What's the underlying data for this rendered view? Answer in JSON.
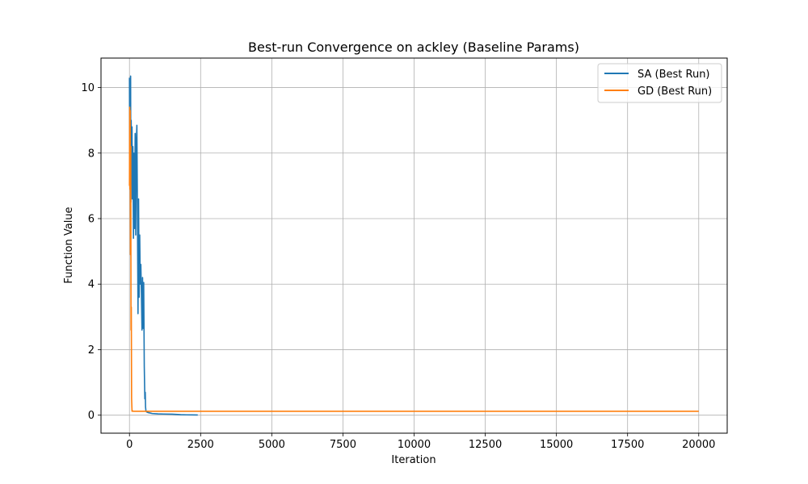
{
  "chart_data": {
    "type": "line",
    "title": "Best-run Convergence on ackley (Baseline Params)",
    "xlabel": "Iteration",
    "ylabel": "Function Value",
    "xlim": [
      -1000,
      21000
    ],
    "ylim": [
      -0.55,
      10.9
    ],
    "xticks": [
      0,
      2500,
      5000,
      7500,
      10000,
      12500,
      15000,
      17500,
      20000
    ],
    "yticks": [
      0,
      2,
      4,
      6,
      8,
      10
    ],
    "grid": true,
    "legend_position": "top-right",
    "series": [
      {
        "name": "SA (Best Run)",
        "color": "#1f77b4",
        "x": [
          0,
          10,
          25,
          40,
          50,
          60,
          75,
          90,
          100,
          120,
          140,
          160,
          180,
          200,
          220,
          240,
          260,
          280,
          300,
          320,
          340,
          360,
          380,
          400,
          420,
          440,
          460,
          480,
          500,
          520,
          540,
          555,
          565,
          580,
          600,
          650,
          700,
          800,
          1000,
          1200,
          1500,
          1700,
          1800,
          2000,
          2200,
          2400
        ],
        "y": [
          10.3,
          7.1,
          9.6,
          10.35,
          6.5,
          9.0,
          7.4,
          8.8,
          6.6,
          8.2,
          5.4,
          8.0,
          5.7,
          8.6,
          5.5,
          8.3,
          8.85,
          6.2,
          3.1,
          6.6,
          3.6,
          5.5,
          4.0,
          4.6,
          3.7,
          2.6,
          4.2,
          2.65,
          4.05,
          1.5,
          0.5,
          0.7,
          0.25,
          0.12,
          0.1,
          0.08,
          0.07,
          0.05,
          0.04,
          0.035,
          0.03,
          0.02,
          0.015,
          0.01,
          0.008,
          0.005
        ]
      },
      {
        "name": "GD (Best Run)",
        "color": "#ff7f0e",
        "x": [
          0,
          8,
          15,
          25,
          35,
          45,
          55,
          65,
          75,
          90,
          110,
          130,
          500,
          1000,
          5000,
          10000,
          15000,
          20000
        ],
        "y": [
          7.0,
          9.4,
          6.9,
          9.3,
          4.9,
          8.2,
          2.6,
          3.3,
          0.5,
          0.12,
          0.13,
          0.12,
          0.12,
          0.12,
          0.12,
          0.12,
          0.12,
          0.12
        ]
      }
    ]
  }
}
